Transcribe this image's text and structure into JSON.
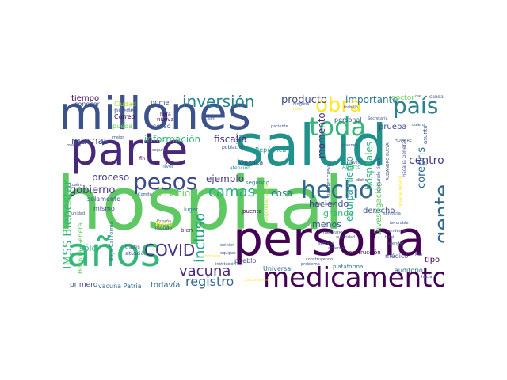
{
  "words": [
    {
      "text": "hospital",
      "color": "#5ec962"
    },
    {
      "text": "salud",
      "color": "#21918c"
    },
    {
      "text": "persona",
      "color": "#440154"
    },
    {
      "text": "millones",
      "color": "#3b528b"
    },
    {
      "text": "parte",
      "color": "#482878"
    },
    {
      "text": "años",
      "color": "#35b779"
    },
    {
      "text": "medicamento",
      "color": "#440154"
    },
    {
      "text": "hecho",
      "color": "#31688e"
    },
    {
      "text": "toda",
      "color": "#35b779"
    },
    {
      "text": "obra",
      "color": "#fde725"
    },
    {
      "text": "país",
      "color": "#26828e"
    },
    {
      "text": "gente",
      "color": "#31688e"
    },
    {
      "text": "pesos",
      "color": "#3e4989"
    },
    {
      "text": "inversión",
      "color": "#26828e"
    },
    {
      "text": "COVID",
      "color": "#46327e"
    },
    {
      "text": "incluso",
      "color": "#20a486"
    },
    {
      "text": "camas",
      "color": "#22a884"
    },
    {
      "text": "vacuna",
      "color": "#482878"
    },
    {
      "text": "registro",
      "color": "#31688e"
    },
    {
      "text": "IMSS Bienestar",
      "color": "#35b779"
    },
    {
      "text": "producto",
      "color": "#3e4989"
    },
    {
      "text": "importante",
      "color": "#2a788e"
    },
    {
      "text": "centro",
      "color": "#443983"
    },
    {
      "text": "corepris",
      "color": "#31688e"
    },
    {
      "text": "información",
      "color": "#35b779"
    },
    {
      "text": "fiscalía",
      "color": "#472d7b"
    },
    {
      "text": "gobierno",
      "color": "#453781"
    },
    {
      "text": "muchas",
      "color": "#3b528b"
    },
    {
      "text": "proceso",
      "color": "#414487"
    },
    {
      "text": "servicio",
      "color": "#6ece58"
    },
    {
      "text": "ejemplo",
      "color": "#443983"
    },
    {
      "text": "cosa",
      "color": "#2a788e"
    },
    {
      "text": "momento",
      "color": "#472d7b"
    },
    {
      "text": "equipamiento",
      "color": "#22a884"
    },
    {
      "text": "hospitales",
      "color": "#35b779"
    },
    {
      "text": "grande",
      "color": "#35b779"
    },
    {
      "text": "haciendo",
      "color": "#3e4989"
    },
    {
      "text": "derecho",
      "color": "#3b528b"
    },
    {
      "text": "menos",
      "color": "#3b528b"
    },
    {
      "text": "hoy",
      "color": "#fde725"
    },
    {
      "text": "sólo",
      "color": "#35b779"
    },
    {
      "text": "tipo",
      "color": "#440154"
    },
    {
      "text": "todavía",
      "color": "#31688e"
    },
    {
      "text": "primero",
      "color": "#3e4989"
    },
    {
      "text": "vacuna Patria",
      "color": "#31688e"
    },
    {
      "text": "Hospital General",
      "color": "#5ec962"
    },
    {
      "text": "tiempo",
      "color": "#440154"
    },
    {
      "text": "conocer",
      "color": "#3b528b"
    },
    {
      "text": "Ciudad",
      "color": "#b5de2b"
    },
    {
      "text": "pueden",
      "color": "#3b528b"
    },
    {
      "text": "Correo",
      "color": "#440154"
    },
    {
      "text": "pueda",
      "color": "#6ece58"
    },
    {
      "text": "acceso",
      "color": "#3e4989"
    },
    {
      "text": "primer",
      "color": "#3e4989"
    },
    {
      "text": "hora",
      "color": "#440154"
    },
    {
      "text": "nueva",
      "color": "#440154"
    },
    {
      "text": "fin",
      "color": "#440154"
    },
    {
      "text": "vez",
      "color": "#482878"
    },
    {
      "text": "nivel",
      "color": "#2a788e"
    },
    {
      "text": "República",
      "color": "#21918c"
    },
    {
      "text": "Oaxaca",
      "color": "#3e4989"
    },
    {
      "text": "segundo",
      "color": "#2a788e"
    },
    {
      "text": "lugar",
      "color": "#2a788e"
    },
    {
      "text": "bien",
      "color": "#482878"
    },
    {
      "text": "solamente",
      "color": "#3b528b"
    },
    {
      "text": "mismo",
      "color": "#3e4989"
    },
    {
      "text": "puente",
      "color": "#440154"
    },
    {
      "text": "pueblo",
      "color": "#3e4989"
    },
    {
      "text": "Universal",
      "color": "#31688e"
    },
    {
      "text": "plataforma",
      "color": "#2a788e"
    },
    {
      "text": "construcción",
      "color": "#440154"
    },
    {
      "text": "auditorio",
      "color": "#31688e"
    },
    {
      "text": "prueba",
      "color": "#3e4989"
    },
    {
      "text": "personal",
      "color": "#3b528b"
    },
    {
      "text": "doctor",
      "color": "#6ece58"
    },
    {
      "text": "médico",
      "color": "#3e4989"
    },
    {
      "text": "investigación",
      "color": "#5ec962"
    },
    {
      "text": "Aburto",
      "color": "#35b779"
    },
    {
      "text": "asunto",
      "color": "#3b528b"
    },
    {
      "text": "población",
      "color": "#3b528b"
    },
    {
      "text": "atención",
      "color": "#21918c"
    },
    {
      "text": "mundo",
      "color": "#3b528b"
    },
    {
      "text": "España",
      "color": "#3b528b"
    },
    {
      "text": "Baja California",
      "color": "#2a788e"
    },
    {
      "text": "través",
      "color": "#3b528b"
    },
    {
      "text": "situación",
      "color": "#3b528b"
    },
    {
      "text": "ninguna",
      "color": "#3b528b"
    },
    {
      "text": "creo",
      "color": "#fde725"
    },
    {
      "text": "calidad",
      "color": "#3b528b"
    },
    {
      "text": "seguridad social",
      "color": "#b5de2b"
    },
    {
      "text": "equipos",
      "color": "#3b528b"
    },
    {
      "text": "institución",
      "color": "#3b528b"
    },
    {
      "text": "construyendo",
      "color": "#3b528b"
    },
    {
      "text": "atender",
      "color": "#3b528b"
    },
    {
      "text": "hacia",
      "color": "#3b528b"
    },
    {
      "text": "total",
      "color": "#3b528b"
    },
    {
      "text": "favorable",
      "color": "#3b528b"
    },
    {
      "text": "dicho",
      "color": "#3b528b"
    },
    {
      "text": "Jueves",
      "color": "#3b528b"
    },
    {
      "text": "trabajo",
      "color": "#3b528b"
    },
    {
      "text": "jóvenes",
      "color": "#3b528b"
    },
    {
      "text": "Secretaría",
      "color": "#3b528b"
    },
    {
      "text": "HOMBRE",
      "color": "#3b528b"
    },
    {
      "text": "quiero",
      "color": "#3b528b"
    },
    {
      "text": "dar",
      "color": "#3b528b"
    },
    {
      "text": "paciente",
      "color": "#3b528b"
    },
    {
      "text": "medios",
      "color": "#3b528b"
    },
    {
      "text": "cuatro",
      "color": "#3b528b"
    },
    {
      "text": "mejor",
      "color": "#3b528b"
    },
    {
      "text": "seguro",
      "color": "#3b528b"
    },
    {
      "text": "hospital general",
      "color": "#fde725"
    },
    {
      "text": "vacunación",
      "color": "#fde725"
    },
    {
      "text": "instituciones",
      "color": "#3b528b"
    },
    {
      "text": "mexicano",
      "color": "#3b528b"
    },
    {
      "text": "pandemia",
      "color": "#3b528b"
    },
    {
      "text": "unidad",
      "color": "#3b528b"
    },
    {
      "text": "problema",
      "color": "#3b528b"
    },
    {
      "text": "sanitaria",
      "color": "#3b528b"
    },
    {
      "text": "semana",
      "color": "#3b528b"
    },
    {
      "text": "opinión",
      "color": "#3b528b"
    },
    {
      "text": "comisión",
      "color": "#fde725"
    },
    {
      "text": "Comité",
      "color": "#3b528b"
    },
    {
      "text": "video",
      "color": "#3b528b"
    },
    {
      "text": "Cisen",
      "color": "#3b528b"
    },
    {
      "text": "segundo tiraje",
      "color": "#3b528b"
    },
    {
      "text": "autoridad",
      "color": "#3b528b"
    },
    {
      "text": "acuerdo",
      "color": "#3b528b"
    },
    {
      "text": "Fiscalía General",
      "color": "#3b528b"
    },
    {
      "text": "ALEJANDRO CUEVA",
      "color": "#3b528b"
    },
    {
      "text": "RAMÍREZ CUEVA",
      "color": "#3b528b"
    },
    {
      "text": "mal",
      "color": "#3b528b"
    }
  ]
}
